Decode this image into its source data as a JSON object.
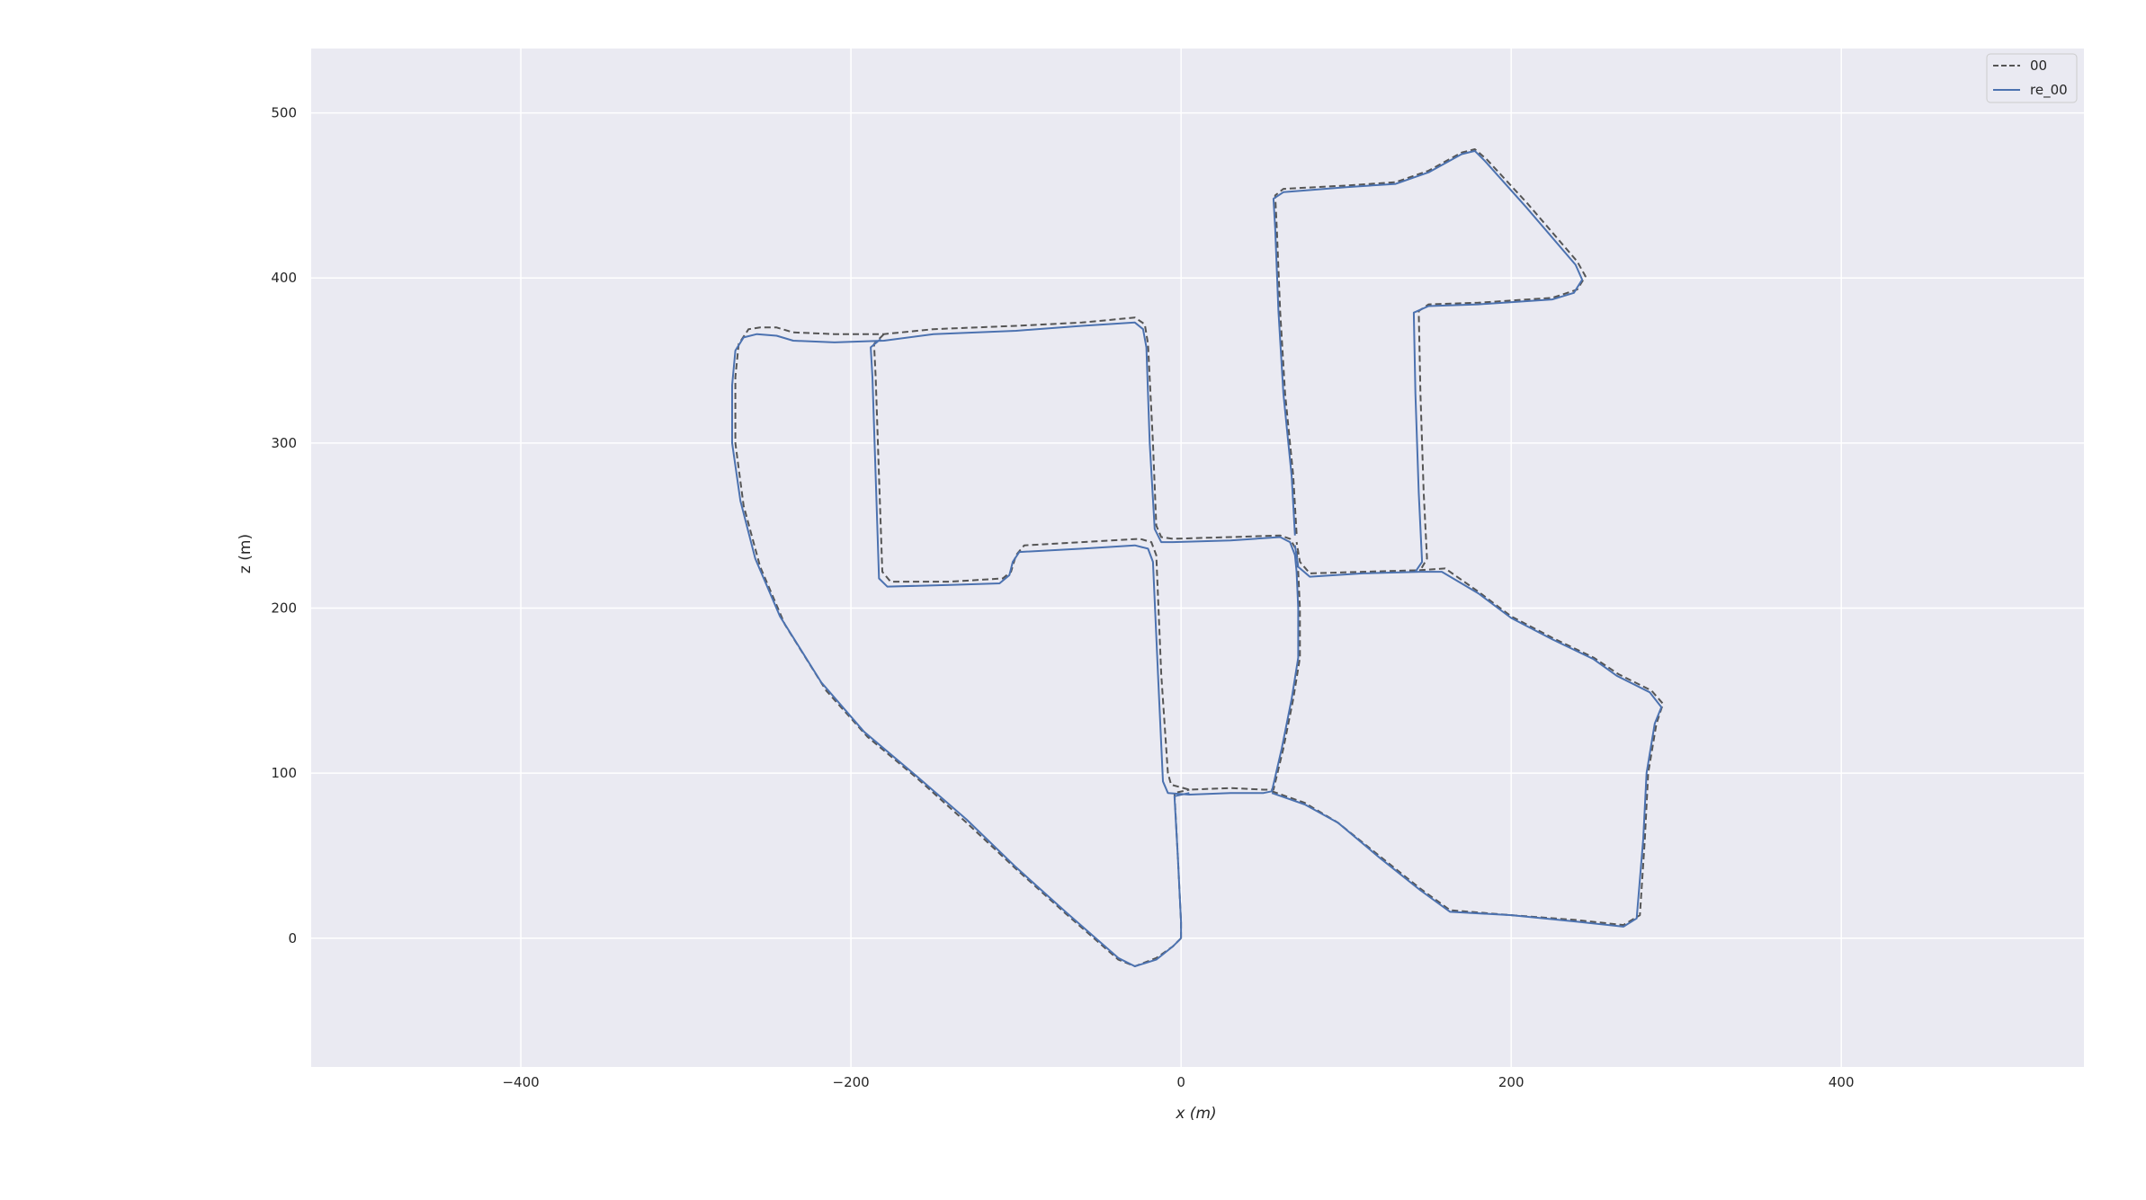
{
  "chart_data": {
    "type": "line",
    "title": "",
    "xlabel": "x (m)",
    "ylabel": "z (m)",
    "xlim": [
      -527,
      547
    ],
    "ylim": [
      -78,
      539
    ],
    "xticks": [
      -400,
      -200,
      0,
      200,
      400
    ],
    "yticks": [
      0,
      100,
      200,
      300,
      400,
      500
    ],
    "xtick_labels": [
      "−400",
      "−200",
      "0",
      "200",
      "400"
    ],
    "ytick_labels": [
      "0",
      "100",
      "200",
      "300",
      "400",
      "500"
    ],
    "grid": true,
    "legend_position": "top-right",
    "background": "#eaeaf2",
    "series": [
      {
        "name": "00",
        "color": "#555555",
        "style": "dashed",
        "polylines": [
          [
            [
              0,
              0
            ],
            [
              -5,
              -5
            ],
            [
              -15,
              -12
            ],
            [
              -28,
              -17
            ],
            [
              -38,
              -13
            ],
            [
              -70,
              15
            ],
            [
              -100,
              42
            ],
            [
              -130,
              70
            ],
            [
              -160,
              97
            ],
            [
              -190,
              122
            ],
            [
              -215,
              150
            ],
            [
              -240,
              190
            ],
            [
              -255,
              225
            ],
            [
              -265,
              262
            ],
            [
              -270,
              300
            ],
            [
              -270,
              340
            ],
            [
              -268,
              360
            ],
            [
              -262,
              369
            ],
            [
              -255,
              370
            ],
            [
              -245,
              370
            ],
            [
              -235,
              367
            ],
            [
              -210,
              366
            ],
            [
              -180,
              366
            ],
            [
              -150,
              369
            ],
            [
              -100,
              371
            ],
            [
              -60,
              373
            ],
            [
              -28,
              376
            ],
            [
              -22,
              372
            ],
            [
              -20,
              360
            ],
            [
              -17,
              300
            ],
            [
              -15,
              250
            ],
            [
              -12,
              243
            ],
            [
              -5,
              242
            ],
            [
              30,
              243
            ],
            [
              60,
              244
            ],
            [
              66,
              242
            ],
            [
              70,
              235
            ],
            [
              71,
              222
            ],
            [
              72,
              200
            ],
            [
              72,
              170
            ],
            [
              68,
              145
            ],
            [
              62,
              115
            ],
            [
              56,
              90
            ],
            [
              50,
              90
            ],
            [
              30,
              91
            ],
            [
              5,
              90
            ],
            [
              -6,
              93
            ],
            [
              -8,
              100
            ],
            [
              -12,
              160
            ],
            [
              -15,
              232
            ],
            [
              -18,
              240
            ],
            [
              -25,
              242
            ],
            [
              -60,
              240
            ],
            [
              -95,
              238
            ],
            [
              -100,
              232
            ],
            [
              -103,
              222
            ],
            [
              -108,
              218
            ],
            [
              -140,
              216
            ],
            [
              -176,
              216
            ],
            [
              -181,
              222
            ],
            [
              -183,
              280
            ],
            [
              -185,
              340
            ],
            [
              -186,
              360
            ],
            [
              -180,
              366
            ]
          ],
          [
            [
              0,
              0
            ],
            [
              0,
              10
            ],
            [
              -2,
              50
            ],
            [
              -4,
              88
            ],
            [
              5,
              90
            ]
          ],
          [
            [
              55,
              89
            ],
            [
              75,
              82
            ],
            [
              95,
              70
            ],
            [
              120,
              50
            ],
            [
              145,
              30
            ],
            [
              163,
              17
            ],
            [
              200,
              14
            ],
            [
              240,
              11
            ],
            [
              268,
              8
            ],
            [
              278,
              14
            ],
            [
              281,
              60
            ],
            [
              283,
              100
            ],
            [
              288,
              130
            ],
            [
              292,
              142
            ],
            [
              285,
              150
            ],
            [
              265,
              160
            ],
            [
              250,
              170
            ],
            [
              225,
              182
            ],
            [
              200,
              195
            ],
            [
              180,
              210
            ],
            [
              160,
              224
            ],
            [
              145,
              223
            ],
            [
              110,
              222
            ],
            [
              78,
              221
            ],
            [
              72,
              228
            ],
            [
              70,
              240
            ]
          ],
          [
            [
              70,
              245
            ],
            [
              68,
              280
            ],
            [
              63,
              330
            ],
            [
              60,
              380
            ],
            [
              58,
              430
            ],
            [
              57,
              450
            ],
            [
              62,
              454
            ],
            [
              100,
              456
            ],
            [
              130,
              458
            ],
            [
              150,
              465
            ],
            [
              170,
              476
            ],
            [
              178,
              478
            ],
            [
              185,
              472
            ],
            [
              210,
              445
            ],
            [
              240,
              410
            ],
            [
              245,
              401
            ],
            [
              240,
              393
            ],
            [
              225,
              388
            ],
            [
              180,
              385
            ],
            [
              150,
              384
            ],
            [
              144,
              380
            ],
            [
              145,
              330
            ],
            [
              147,
              270
            ],
            [
              149,
              230
            ],
            [
              145,
              223
            ]
          ]
        ]
      },
      {
        "name": "re_00",
        "color": "#4c72b0",
        "style": "solid",
        "polylines": [
          [
            [
              0,
              0
            ],
            [
              -5,
              -5
            ],
            [
              -15,
              -13
            ],
            [
              -28,
              -17
            ],
            [
              -38,
              -12
            ],
            [
              -70,
              16
            ],
            [
              -100,
              43
            ],
            [
              -130,
              72
            ],
            [
              -160,
              98
            ],
            [
              -192,
              125
            ],
            [
              -218,
              155
            ],
            [
              -243,
              195
            ],
            [
              -258,
              230
            ],
            [
              -267,
              265
            ],
            [
              -272,
              300
            ],
            [
              -272,
              335
            ],
            [
              -270,
              356
            ],
            [
              -265,
              364
            ],
            [
              -257,
              366
            ],
            [
              -245,
              365
            ],
            [
              -235,
              362
            ],
            [
              -210,
              361
            ],
            [
              -180,
              362
            ],
            [
              -150,
              366
            ],
            [
              -100,
              368
            ],
            [
              -60,
              371
            ],
            [
              -28,
              373
            ],
            [
              -23,
              369
            ],
            [
              -21,
              358
            ],
            [
              -19,
              300
            ],
            [
              -16,
              248
            ],
            [
              -12,
              240
            ],
            [
              -5,
              240
            ],
            [
              30,
              241
            ],
            [
              60,
              243
            ],
            [
              66,
              240
            ],
            [
              69,
              232
            ],
            [
              70,
              222
            ],
            [
              71,
              200
            ],
            [
              71,
              170
            ],
            [
              67,
              145
            ],
            [
              61,
              115
            ],
            [
              55,
              89
            ],
            [
              50,
              88
            ],
            [
              30,
              88
            ],
            [
              5,
              87
            ],
            [
              -8,
              88
            ],
            [
              -11,
              95
            ],
            [
              -14,
              160
            ],
            [
              -17,
              228
            ],
            [
              -20,
              236
            ],
            [
              -28,
              238
            ],
            [
              -60,
              236
            ],
            [
              -98,
              234
            ],
            [
              -102,
              228
            ],
            [
              -104,
              220
            ],
            [
              -110,
              215
            ],
            [
              -140,
              214
            ],
            [
              -178,
              213
            ],
            [
              -183,
              218
            ],
            [
              -185,
              280
            ],
            [
              -187,
              340
            ],
            [
              -188,
              358
            ],
            [
              -182,
              363
            ]
          ],
          [
            [
              0,
              0
            ],
            [
              0,
              10
            ],
            [
              -2,
              50
            ],
            [
              -4,
              86
            ],
            [
              5,
              88
            ]
          ],
          [
            [
              55,
              88
            ],
            [
              75,
              81
            ],
            [
              95,
              70
            ],
            [
              120,
              49
            ],
            [
              145,
              29
            ],
            [
              163,
              16
            ],
            [
              200,
              14
            ],
            [
              240,
              10
            ],
            [
              268,
              7
            ],
            [
              276,
              12
            ],
            [
              280,
              60
            ],
            [
              282,
              100
            ],
            [
              287,
              130
            ],
            [
              291,
              140
            ],
            [
              284,
              149
            ],
            [
              264,
              159
            ],
            [
              250,
              169
            ],
            [
              225,
              181
            ],
            [
              200,
              194
            ],
            [
              180,
              209
            ],
            [
              158,
              222
            ],
            [
              145,
              222
            ],
            [
              110,
              221
            ],
            [
              78,
              219
            ],
            [
              71,
              225
            ],
            [
              69,
              238
            ]
          ],
          [
            [
              69,
              244
            ],
            [
              67,
              280
            ],
            [
              62,
              330
            ],
            [
              59,
              380
            ],
            [
              57,
              430
            ],
            [
              56,
              448
            ],
            [
              62,
              452
            ],
            [
              100,
              455
            ],
            [
              130,
              457
            ],
            [
              150,
              464
            ],
            [
              170,
              475
            ],
            [
              178,
              477
            ],
            [
              184,
              471
            ],
            [
              209,
              443
            ],
            [
              239,
              408
            ],
            [
              243,
              399
            ],
            [
              238,
              391
            ],
            [
              225,
              387
            ],
            [
              180,
              384
            ],
            [
              150,
              383
            ],
            [
              141,
              379
            ],
            [
              142,
              330
            ],
            [
              144,
              270
            ],
            [
              146,
              228
            ],
            [
              142,
              222
            ]
          ]
        ]
      }
    ]
  }
}
